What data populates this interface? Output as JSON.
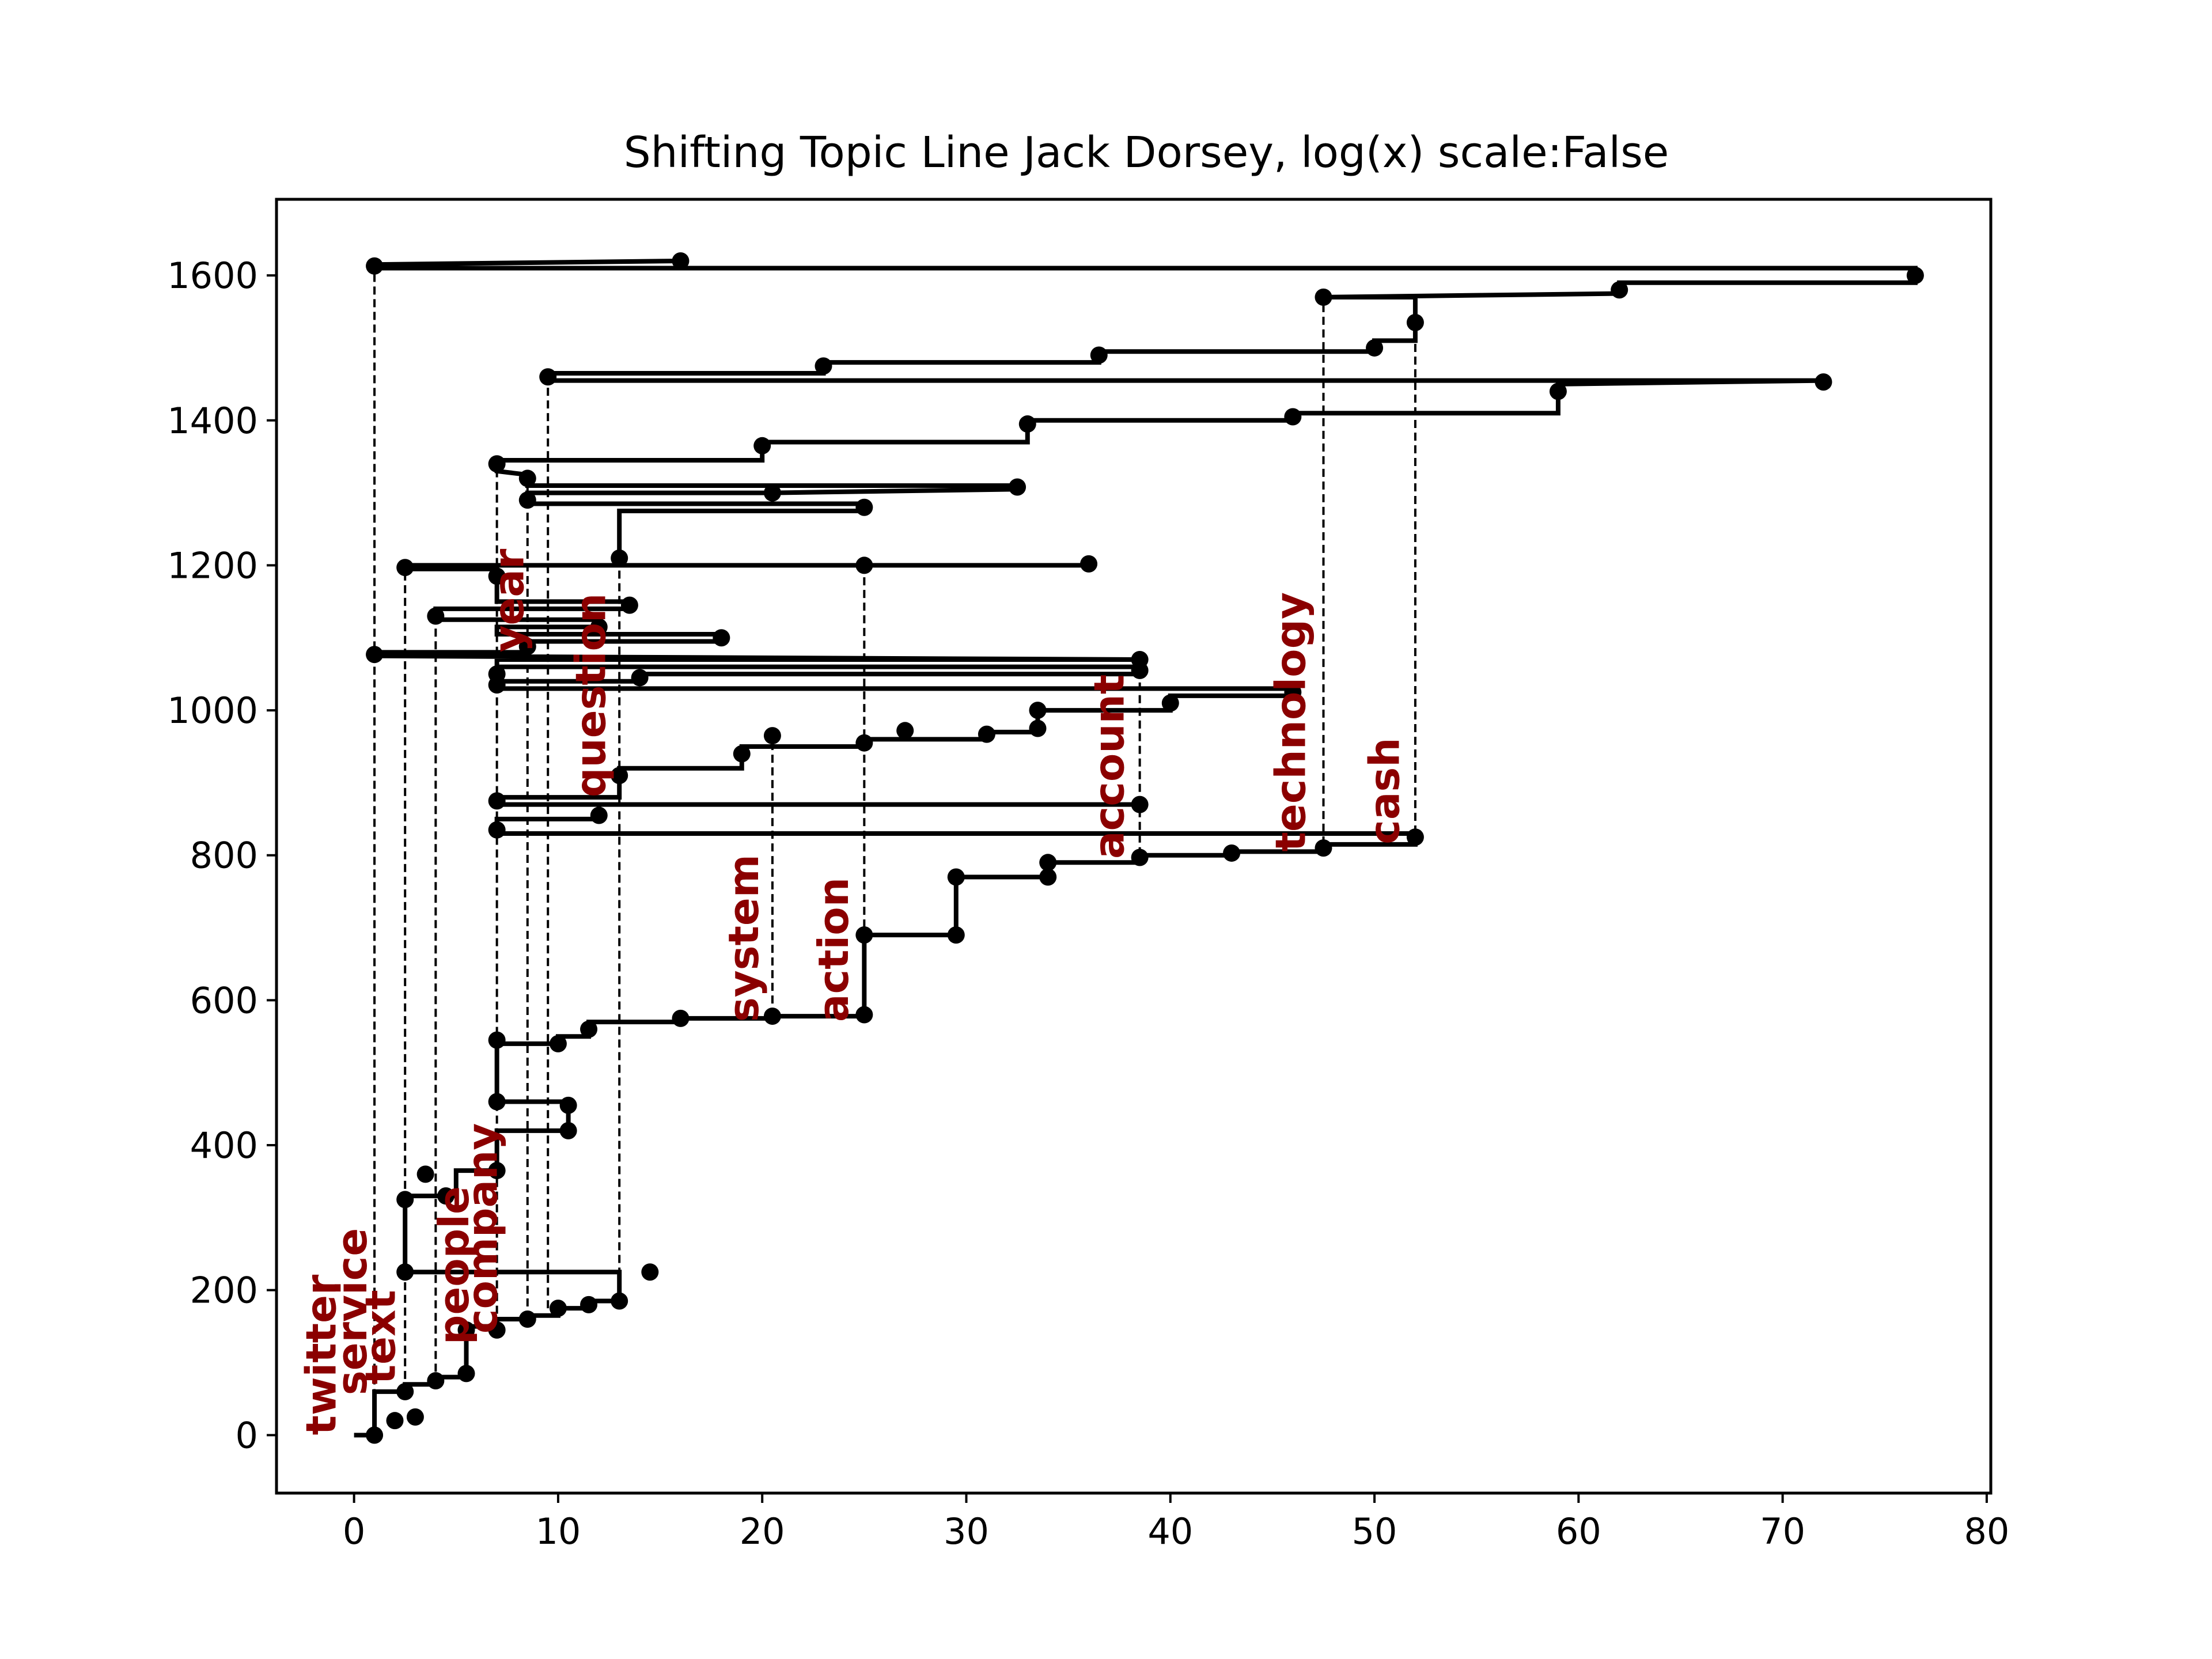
{
  "chart_data": {
    "type": "line",
    "title": "Shifting Topic Line Jack Dorsey, log(x) scale:False",
    "xlabel": "",
    "ylabel": "",
    "xlim": [
      -3.8,
      80.2
    ],
    "ylim": [
      -80,
      1705
    ],
    "x_ticks": [
      0,
      10,
      20,
      30,
      40,
      50,
      60,
      70,
      80
    ],
    "y_ticks": [
      0,
      200,
      400,
      600,
      800,
      1000,
      1200,
      1400,
      1600
    ],
    "grid": false,
    "line_color": "#000000",
    "label_color": "#8b0000",
    "main_path": [
      [
        0,
        0
      ],
      [
        1,
        0
      ],
      [
        1,
        60
      ],
      [
        2.5,
        60
      ],
      [
        2.5,
        70
      ],
      [
        4,
        70
      ],
      [
        4,
        80
      ],
      [
        5.5,
        80
      ],
      [
        5.5,
        150
      ],
      [
        7,
        150
      ],
      [
        7,
        160
      ],
      [
        8.5,
        160
      ],
      [
        8.5,
        165
      ],
      [
        10,
        165
      ],
      [
        10,
        175
      ],
      [
        11.5,
        175
      ],
      [
        11.5,
        185
      ],
      [
        13,
        185
      ],
      [
        13,
        225
      ],
      [
        2.5,
        225
      ],
      [
        2.5,
        330
      ],
      [
        5,
        330
      ],
      [
        5,
        365
      ],
      [
        7,
        365
      ],
      [
        7,
        420
      ],
      [
        10.5,
        420
      ],
      [
        10.5,
        460
      ],
      [
        7,
        460
      ],
      [
        7,
        540
      ],
      [
        10,
        540
      ],
      [
        10,
        550
      ],
      [
        11.5,
        550
      ],
      [
        11.5,
        570
      ],
      [
        16,
        570
      ],
      [
        16,
        575
      ],
      [
        20.5,
        575
      ],
      [
        20.5,
        578
      ],
      [
        25,
        578
      ],
      [
        25,
        690
      ],
      [
        29.5,
        690
      ],
      [
        29.5,
        770
      ],
      [
        34,
        770
      ],
      [
        34,
        790
      ],
      [
        38.5,
        790
      ],
      [
        38.5,
        800
      ],
      [
        43,
        800
      ],
      [
        43,
        805
      ],
      [
        47.5,
        805
      ],
      [
        47.5,
        815
      ],
      [
        52,
        815
      ],
      [
        52,
        830
      ],
      [
        7,
        830
      ],
      [
        7,
        850
      ],
      [
        12,
        850
      ],
      [
        12,
        870
      ],
      [
        38.5,
        870
      ],
      [
        7,
        870
      ],
      [
        7,
        880
      ],
      [
        13,
        880
      ],
      [
        13,
        920
      ],
      [
        19,
        920
      ],
      [
        19,
        950
      ],
      [
        25,
        950
      ],
      [
        25,
        960
      ],
      [
        31,
        960
      ],
      [
        31,
        970
      ],
      [
        33.5,
        970
      ],
      [
        33.5,
        1000
      ],
      [
        40,
        1000
      ],
      [
        40,
        1020
      ],
      [
        46,
        1020
      ],
      [
        46,
        1030
      ],
      [
        7,
        1030
      ],
      [
        7,
        1040
      ],
      [
        14,
        1040
      ],
      [
        14,
        1050
      ],
      [
        38.5,
        1050
      ],
      [
        38.5,
        1060
      ],
      [
        7,
        1060
      ],
      [
        7,
        1070
      ],
      [
        38.5,
        1070
      ],
      [
        1,
        1075
      ],
      [
        1,
        1080
      ],
      [
        8.5,
        1080
      ],
      [
        8.5,
        1095
      ],
      [
        18,
        1095
      ],
      [
        18,
        1105
      ],
      [
        7,
        1105
      ],
      [
        7,
        1115
      ],
      [
        12,
        1115
      ],
      [
        12,
        1125
      ],
      [
        4,
        1125
      ],
      [
        4,
        1140
      ],
      [
        13.5,
        1140
      ],
      [
        13.5,
        1150
      ],
      [
        7,
        1150
      ],
      [
        7,
        1195
      ],
      [
        2.5,
        1195
      ],
      [
        2.5,
        1200
      ],
      [
        25,
        1200
      ],
      [
        36,
        1200
      ],
      [
        13,
        1200
      ],
      [
        13,
        1275
      ],
      [
        25,
        1275
      ],
      [
        25,
        1285
      ],
      [
        8.5,
        1285
      ],
      [
        8.5,
        1300
      ],
      [
        20.5,
        1300
      ],
      [
        32.5,
        1305
      ],
      [
        32.5,
        1310
      ],
      [
        8.5,
        1310
      ],
      [
        8.5,
        1325
      ],
      [
        7,
        1330
      ],
      [
        7,
        1345
      ],
      [
        20,
        1345
      ],
      [
        20,
        1370
      ],
      [
        33,
        1370
      ],
      [
        33,
        1400
      ],
      [
        46,
        1400
      ],
      [
        46,
        1410
      ],
      [
        59,
        1410
      ],
      [
        59,
        1450
      ],
      [
        72,
        1455
      ],
      [
        9.5,
        1455
      ],
      [
        9.5,
        1465
      ],
      [
        23,
        1465
      ],
      [
        23,
        1480
      ],
      [
        36.5,
        1480
      ],
      [
        36.5,
        1495
      ],
      [
        50,
        1495
      ],
      [
        50,
        1510
      ],
      [
        52,
        1510
      ],
      [
        52,
        1570
      ],
      [
        47.5,
        1570
      ],
      [
        62,
        1575
      ],
      [
        62,
        1590
      ],
      [
        76.5,
        1590
      ],
      [
        76.5,
        1610
      ],
      [
        1,
        1610
      ],
      [
        1,
        1615
      ],
      [
        16,
        1620
      ]
    ],
    "series": [
      {
        "values": [
          [
            1,
            0
          ],
          [
            2,
            20
          ],
          [
            3,
            25
          ],
          [
            2.5,
            60
          ],
          [
            4,
            75
          ],
          [
            5.5,
            85
          ],
          [
            5.5,
            145
          ],
          [
            7,
            145
          ],
          [
            8.5,
            160
          ],
          [
            10,
            175
          ],
          [
            11.5,
            180
          ],
          [
            13,
            185
          ],
          [
            14.5,
            225
          ],
          [
            2.5,
            225
          ],
          [
            2.5,
            325
          ],
          [
            4.5,
            330
          ],
          [
            3.5,
            360
          ],
          [
            7,
            365
          ],
          [
            10.5,
            420
          ],
          [
            10.5,
            455
          ],
          [
            7,
            460
          ],
          [
            7,
            545
          ],
          [
            10,
            540
          ],
          [
            11.5,
            560
          ],
          [
            16,
            575
          ],
          [
            20.5,
            578
          ],
          [
            25,
            580
          ],
          [
            25,
            690
          ],
          [
            29.5,
            690
          ],
          [
            29.5,
            770
          ],
          [
            34,
            770
          ],
          [
            34,
            790
          ],
          [
            38.5,
            797
          ],
          [
            43,
            803
          ],
          [
            47.5,
            810
          ],
          [
            52,
            825
          ],
          [
            7,
            835
          ],
          [
            12,
            855
          ],
          [
            38.5,
            870
          ],
          [
            7,
            875
          ],
          [
            13,
            910
          ],
          [
            19,
            940
          ],
          [
            20.5,
            965
          ],
          [
            25,
            955
          ],
          [
            27,
            972
          ],
          [
            31,
            967
          ],
          [
            33.5,
            975
          ],
          [
            33.5,
            1000
          ],
          [
            40,
            1010
          ],
          [
            46,
            1025
          ],
          [
            7,
            1035
          ],
          [
            14,
            1045
          ],
          [
            38.5,
            1055
          ],
          [
            38.5,
            1070
          ],
          [
            7,
            1050
          ],
          [
            1,
            1077
          ],
          [
            8.5,
            1088
          ],
          [
            18,
            1100
          ],
          [
            12,
            1115
          ],
          [
            4,
            1130
          ],
          [
            13.5,
            1145
          ],
          [
            7,
            1185
          ],
          [
            2.5,
            1197
          ],
          [
            25,
            1200
          ],
          [
            36,
            1202
          ],
          [
            13,
            1210
          ],
          [
            25,
            1280
          ],
          [
            8.5,
            1290
          ],
          [
            20.5,
            1300
          ],
          [
            32.5,
            1308
          ],
          [
            8.5,
            1320
          ],
          [
            7,
            1340
          ],
          [
            20,
            1365
          ],
          [
            33,
            1395
          ],
          [
            46,
            1405
          ],
          [
            59,
            1440
          ],
          [
            72,
            1453
          ],
          [
            9.5,
            1460
          ],
          [
            23,
            1475
          ],
          [
            36.5,
            1490
          ],
          [
            50,
            1500
          ],
          [
            52,
            1535
          ],
          [
            47.5,
            1570
          ],
          [
            62,
            1580
          ],
          [
            76.5,
            1600
          ],
          [
            1,
            1613
          ],
          [
            16,
            1620
          ]
        ]
      }
    ],
    "dashed_lines": [
      [
        1,
        0,
        1,
        1610
      ],
      [
        2.5,
        60,
        2.5,
        1195
      ],
      [
        4,
        70,
        4,
        1140
      ],
      [
        7,
        150,
        7,
        1345
      ],
      [
        8.5,
        160,
        8.5,
        1325
      ],
      [
        9.5,
        175,
        9.5,
        1460
      ],
      [
        13,
        185,
        13,
        1200
      ],
      [
        20.5,
        578,
        20.5,
        965
      ],
      [
        25,
        578,
        25,
        1200
      ],
      [
        38.5,
        800,
        38.5,
        1070
      ],
      [
        47.5,
        815,
        47.5,
        1570
      ],
      [
        52,
        830,
        52,
        1570
      ]
    ],
    "annotations": [
      {
        "text": "twitter",
        "x": -0.9,
        "y": 0
      },
      {
        "text": "service",
        "x": 0.6,
        "y": 55
      },
      {
        "text": "text",
        "x": 2.0,
        "y": 70
      },
      {
        "text": "people",
        "x": 5.6,
        "y": 125
      },
      {
        "text": "company",
        "x": 7.0,
        "y": 140
      },
      {
        "text": "year",
        "x": 8.3,
        "y": 1080
      },
      {
        "text": "question",
        "x": 12.3,
        "y": 880
      },
      {
        "text": "system",
        "x": 19.8,
        "y": 570
      },
      {
        "text": "action",
        "x": 24.2,
        "y": 570
      },
      {
        "text": "account",
        "x": 37.7,
        "y": 795
      },
      {
        "text": "technology",
        "x": 46.6,
        "y": 805
      },
      {
        "text": "cash",
        "x": 51.2,
        "y": 815
      }
    ]
  }
}
